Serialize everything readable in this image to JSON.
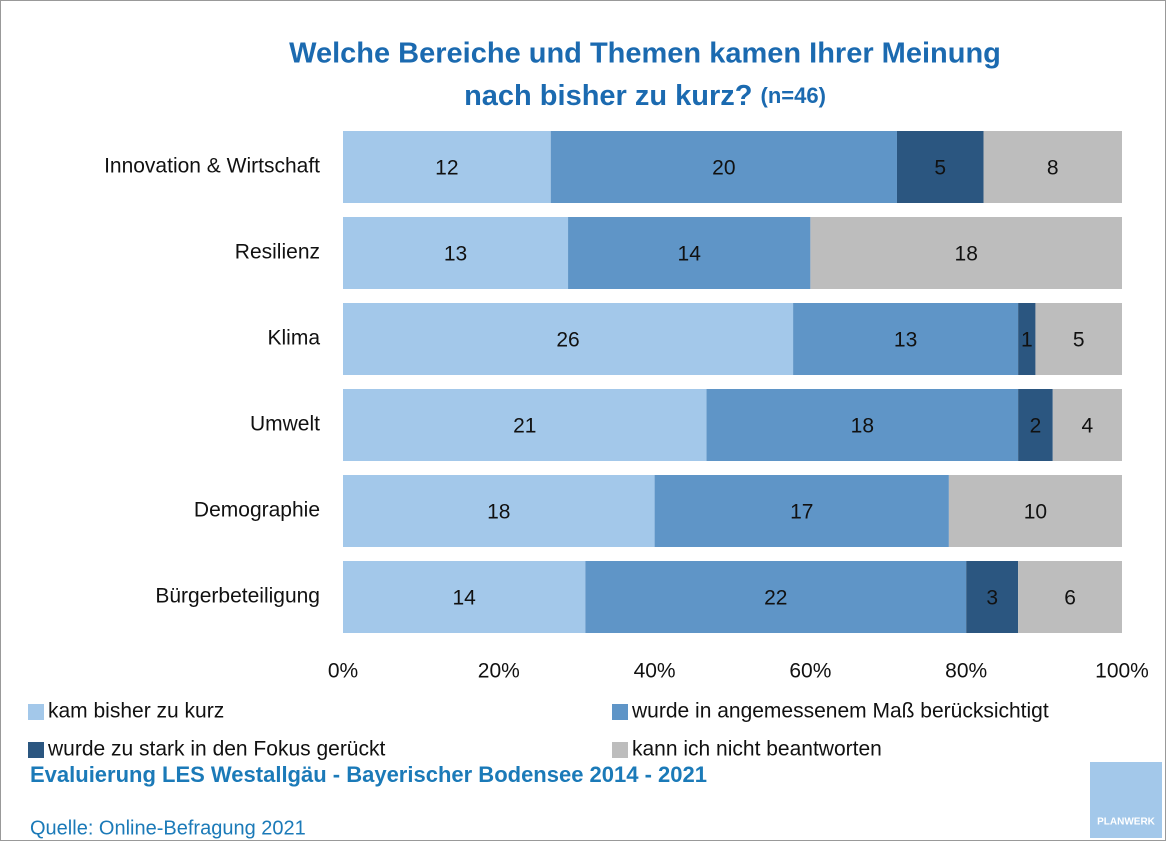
{
  "chart_data": {
    "type": "bar",
    "orientation": "horizontal",
    "stacking": "percent",
    "title": [
      "Welche Bereiche und Themen kamen Ihrer Meinung",
      "nach bisher zu kurz?"
    ],
    "subtitle": "(n=46)",
    "categories": [
      "Innovation & Wirtschaft",
      "Resilienz",
      "Klima",
      "Umwelt",
      "Demographie",
      "Bürgerbeteiligung"
    ],
    "series": [
      {
        "name": "kam bisher zu kurz",
        "color": "#a3c8ea",
        "values": [
          12,
          13,
          26,
          21,
          18,
          14
        ]
      },
      {
        "name": "wurde in angemessenem Maß berücksichtigt",
        "color": "#5f95c7",
        "values": [
          20,
          14,
          13,
          18,
          17,
          22
        ]
      },
      {
        "name": "wurde zu stark in den Fokus gerückt",
        "color": "#2b5680",
        "values": [
          5,
          null,
          1,
          2,
          null,
          3
        ]
      },
      {
        "name": "kann ich nicht beantworten",
        "color": "#bdbdbd",
        "values": [
          8,
          18,
          5,
          4,
          10,
          6
        ]
      }
    ],
    "xlim": [
      0,
      100
    ],
    "xticks": [
      {
        "value": 0,
        "label": "0%"
      },
      {
        "value": 20,
        "label": "20%"
      },
      {
        "value": 40,
        "label": "40%"
      },
      {
        "value": 60,
        "label": "60%"
      },
      {
        "value": 80,
        "label": "80%"
      },
      {
        "value": 100,
        "label": "100%"
      }
    ],
    "grid": false,
    "legend": "bottom"
  },
  "footer": {
    "line1": "Evaluierung LES Westallgäu - Bayerischer Bodensee 2014 - 2021",
    "line2": "Quelle: Online-Befragung 2021",
    "logo": "PLANWERK"
  }
}
